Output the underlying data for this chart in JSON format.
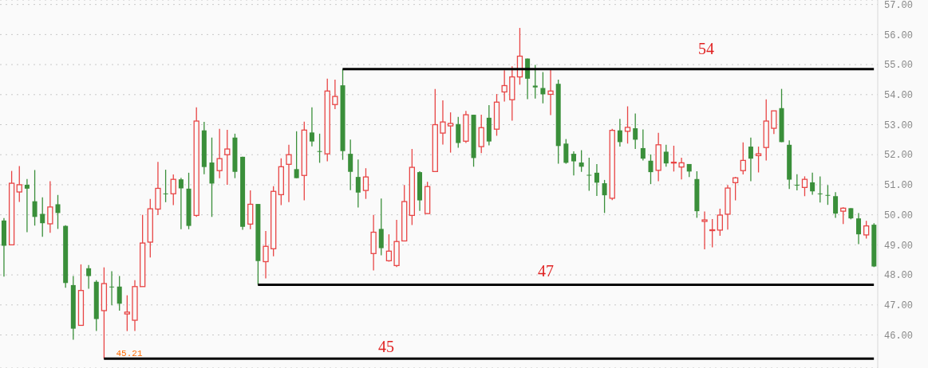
{
  "chart_data": {
    "type": "candlestick",
    "categories": [
      null,
      null,
      null,
      null,
      null,
      null,
      null,
      null,
      null,
      null,
      null,
      null,
      null,
      null,
      null,
      null,
      null,
      null,
      null,
      null,
      null,
      null,
      null,
      null,
      null,
      null,
      null,
      null,
      null,
      null,
      null,
      null,
      null,
      null,
      null,
      null,
      null,
      null,
      null,
      null,
      null,
      null,
      null,
      null,
      null,
      null,
      null,
      null,
      null,
      null,
      null,
      null,
      null,
      null,
      null,
      null,
      null,
      null,
      null,
      null,
      null,
      null,
      null,
      null,
      null,
      null,
      null,
      null,
      null,
      null,
      null,
      null,
      null,
      null,
      null,
      null,
      null,
      null,
      null,
      null,
      null,
      null,
      null,
      null,
      null,
      null,
      null,
      null,
      null,
      null,
      null,
      null,
      null,
      null,
      null,
      null,
      null,
      null,
      null,
      null,
      null,
      null,
      null,
      null,
      null,
      null,
      null,
      null,
      null,
      null,
      null,
      null,
      null,
      null
    ],
    "ohlc": [
      [
        49.81,
        49.89,
        47.94,
        48.97
      ],
      [
        49.0,
        51.46,
        49.0,
        51.05
      ],
      [
        50.76,
        51.62,
        50.43,
        51.0
      ],
      [
        51.0,
        51.19,
        49.42,
        50.87
      ],
      [
        50.45,
        51.49,
        49.64,
        49.93
      ],
      [
        50.03,
        50.58,
        49.27,
        49.72
      ],
      [
        49.7,
        51.12,
        49.4,
        50.26
      ],
      [
        50.35,
        50.66,
        49.53,
        50.06
      ],
      [
        49.63,
        49.65,
        47.57,
        47.73
      ],
      [
        47.66,
        47.96,
        45.84,
        46.21
      ],
      [
        46.32,
        48.35,
        46.32,
        47.48
      ],
      [
        48.22,
        48.33,
        47.54,
        47.96
      ],
      [
        47.77,
        47.82,
        46.13,
        46.53
      ],
      [
        46.81,
        48.25,
        45.21,
        47.71
      ],
      [
        47.61,
        48.12,
        46.99,
        47.59
      ],
      [
        47.61,
        47.96,
        46.81,
        47.04
      ],
      [
        46.7,
        47.32,
        46.13,
        46.76
      ],
      [
        46.49,
        47.82,
        46.13,
        47.61
      ],
      [
        47.61,
        50.0,
        47.61,
        49.06
      ],
      [
        49.09,
        50.53,
        48.58,
        50.2
      ],
      [
        50.19,
        51.76,
        49.99,
        50.88
      ],
      [
        50.71,
        51.5,
        50.42,
        50.7
      ],
      [
        50.7,
        51.34,
        50.32,
        51.18
      ],
      [
        51.18,
        51.23,
        49.52,
        50.88
      ],
      [
        50.87,
        51.4,
        49.52,
        49.63
      ],
      [
        49.98,
        53.58,
        49.93,
        53.12
      ],
      [
        52.81,
        53.09,
        51.35,
        51.59
      ],
      [
        51.74,
        52.57,
        49.93,
        51.04
      ],
      [
        51.47,
        52.86,
        51.22,
        51.87
      ],
      [
        52.0,
        52.83,
        51.0,
        52.19
      ],
      [
        52.57,
        52.7,
        51.22,
        51.43
      ],
      [
        51.93,
        51.93,
        49.5,
        49.6
      ],
      [
        49.69,
        50.81,
        49.52,
        50.35
      ],
      [
        50.36,
        50.36,
        47.67,
        48.46
      ],
      [
        48.44,
        49.46,
        47.88,
        48.95
      ],
      [
        48.87,
        50.95,
        48.62,
        50.78
      ],
      [
        50.67,
        51.88,
        50.32,
        51.6
      ],
      [
        51.68,
        52.33,
        50.42,
        52.0
      ],
      [
        51.52,
        52.78,
        51.22,
        51.22
      ],
      [
        51.31,
        53.1,
        50.48,
        52.82
      ],
      [
        52.74,
        53.58,
        52.28,
        52.44
      ],
      [
        52.12,
        52.7,
        51.73,
        52.1
      ],
      [
        52.03,
        54.53,
        51.78,
        54.12
      ],
      [
        53.67,
        54.5,
        53.52,
        53.94
      ],
      [
        54.31,
        54.85,
        51.83,
        52.12
      ],
      [
        52.03,
        52.5,
        50.82,
        51.43
      ],
      [
        51.26,
        51.84,
        50.24,
        50.74
      ],
      [
        50.81,
        51.55,
        50.53,
        51.26
      ],
      [
        48.71,
        50.0,
        48.15,
        49.42
      ],
      [
        49.53,
        50.54,
        48.65,
        48.89
      ],
      [
        48.47,
        49.35,
        48.44,
        48.79
      ],
      [
        48.31,
        49.83,
        48.26,
        49.11
      ],
      [
        49.13,
        50.99,
        49.13,
        50.44
      ],
      [
        49.98,
        52.19,
        49.66,
        51.58
      ],
      [
        51.42,
        51.45,
        50.13,
        50.48
      ],
      [
        50.04,
        51.1,
        50.04,
        50.94
      ],
      [
        51.44,
        54.19,
        51.44,
        53.0
      ],
      [
        52.72,
        53.81,
        52.34,
        53.09
      ],
      [
        52.96,
        53.41,
        52.07,
        53.04
      ],
      [
        53.02,
        53.26,
        52.23,
        52.39
      ],
      [
        52.45,
        53.46,
        52.39,
        53.33
      ],
      [
        53.33,
        53.33,
        51.6,
        51.89
      ],
      [
        52.27,
        53.33,
        52.05,
        52.9
      ],
      [
        53.23,
        53.65,
        52.31,
        52.44
      ],
      [
        52.85,
        54.02,
        52.63,
        53.75
      ],
      [
        54.09,
        54.81,
        53.77,
        54.3
      ],
      [
        53.83,
        54.94,
        53.13,
        54.59
      ],
      [
        54.59,
        56.22,
        54.33,
        55.28
      ],
      [
        55.2,
        55.2,
        53.85,
        54.53
      ],
      [
        54.3,
        54.99,
        53.87,
        54.24
      ],
      [
        54.22,
        54.75,
        53.71,
        54.01
      ],
      [
        54.01,
        54.86,
        53.32,
        54.12
      ],
      [
        54.36,
        54.5,
        51.7,
        52.29
      ],
      [
        52.37,
        52.52,
        51.7,
        51.73
      ],
      [
        52.03,
        52.11,
        51.31,
        51.78
      ],
      [
        51.74,
        52.15,
        51.43,
        51.6
      ],
      [
        51.33,
        51.9,
        50.8,
        51.31
      ],
      [
        51.4,
        51.69,
        50.63,
        51.07
      ],
      [
        51.05,
        51.16,
        50.06,
        50.65
      ],
      [
        50.55,
        52.86,
        50.49,
        52.81
      ],
      [
        52.81,
        53.19,
        52.27,
        52.42
      ],
      [
        52.78,
        53.61,
        52.37,
        52.91
      ],
      [
        52.88,
        53.37,
        52.19,
        52.5
      ],
      [
        52.22,
        52.84,
        51.81,
        51.87
      ],
      [
        51.8,
        52.01,
        51.02,
        51.42
      ],
      [
        51.48,
        52.73,
        51.12,
        52.33
      ],
      [
        52.1,
        52.33,
        51.6,
        51.71
      ],
      [
        51.73,
        52.3,
        51.44,
        51.75
      ],
      [
        51.59,
        51.9,
        51.18,
        51.73
      ],
      [
        51.69,
        51.69,
        51.26,
        51.44
      ],
      [
        51.19,
        51.45,
        49.9,
        50.12
      ],
      [
        49.78,
        50.11,
        48.85,
        49.83
      ],
      [
        49.48,
        49.86,
        48.92,
        49.5
      ],
      [
        49.49,
        50.2,
        49.3,
        49.99
      ],
      [
        50.02,
        50.99,
        49.51,
        50.89
      ],
      [
        51.07,
        51.26,
        50.48,
        51.23
      ],
      [
        51.47,
        52.41,
        51.34,
        51.81
      ],
      [
        52.27,
        52.57,
        51.12,
        51.87
      ],
      [
        51.97,
        52.27,
        51.41,
        52.03
      ],
      [
        52.24,
        53.84,
        51.81,
        53.12
      ],
      [
        52.88,
        53.46,
        52.69,
        53.46
      ],
      [
        53.55,
        54.19,
        52.42,
        52.42
      ],
      [
        52.33,
        52.48,
        50.86,
        51.17
      ],
      [
        51.0,
        51.35,
        50.81,
        50.98
      ],
      [
        50.91,
        51.28,
        50.62,
        51.18
      ],
      [
        51.08,
        51.4,
        50.67,
        50.78
      ],
      [
        50.71,
        51.28,
        50.41,
        50.69
      ],
      [
        50.66,
        50.99,
        50.33,
        50.64
      ],
      [
        50.62,
        50.75,
        49.9,
        50.04
      ],
      [
        50.12,
        50.25,
        49.69,
        50.22
      ],
      [
        50.22,
        50.22,
        49.85,
        49.88
      ],
      [
        49.88,
        50.06,
        49.02,
        49.35
      ],
      [
        49.33,
        49.8,
        49.21,
        49.63
      ],
      [
        49.67,
        49.72,
        48.26,
        48.28
      ]
    ],
    "colors": [
      "#3a8f3a",
      "#e84545",
      "#e84545",
      "#3a8f3a",
      "#3a8f3a",
      "#3a8f3a",
      "#e84545",
      "#3a8f3a",
      "#3a8f3a",
      "#3a8f3a",
      "#e84545",
      "#3a8f3a",
      "#3a8f3a",
      "#e84545",
      "#3a8f3a",
      "#3a8f3a",
      "#e84545",
      "#e84545",
      "#e84545",
      "#e84545",
      "#e84545",
      "#3a8f3a",
      "#e84545",
      "#3a8f3a",
      "#3a8f3a",
      "#e84545",
      "#3a8f3a",
      "#3a8f3a",
      "#e84545",
      "#e84545",
      "#3a8f3a",
      "#3a8f3a",
      "#e84545",
      "#3a8f3a",
      "#e84545",
      "#e84545",
      "#e84545",
      "#e84545",
      "#3a8f3a",
      "#e84545",
      "#3a8f3a",
      "#3a8f3a",
      "#e84545",
      "#e84545",
      "#3a8f3a",
      "#3a8f3a",
      "#3a8f3a",
      "#e84545",
      "#e84545",
      "#3a8f3a",
      "#e84545",
      "#e84545",
      "#e84545",
      "#e84545",
      "#3a8f3a",
      "#e84545",
      "#e84545",
      "#e84545",
      "#e84545",
      "#3a8f3a",
      "#e84545",
      "#3a8f3a",
      "#e84545",
      "#3a8f3a",
      "#e84545",
      "#e84545",
      "#e84545",
      "#e84545",
      "#3a8f3a",
      "#3a8f3a",
      "#3a8f3a",
      "#e84545",
      "#3a8f3a",
      "#3a8f3a",
      "#3a8f3a",
      "#3a8f3a",
      "#3a8f3a",
      "#3a8f3a",
      "#3a8f3a",
      "#e84545",
      "#3a8f3a",
      "#e84545",
      "#3a8f3a",
      "#3a8f3a",
      "#3a8f3a",
      "#e84545",
      "#3a8f3a",
      "#e84545",
      "#e84545",
      "#3a8f3a",
      "#3a8f3a",
      "#e84545",
      "#e84545",
      "#e84545",
      "#e84545",
      "#e84545",
      "#e84545",
      "#3a8f3a",
      "#e84545",
      "#e84545",
      "#e84545",
      "#3a8f3a",
      "#3a8f3a",
      "#3a8f3a",
      "#e84545",
      "#3a8f3a",
      "#3a8f3a",
      "#3a8f3a",
      "#3a8f3a",
      "#e84545",
      "#3a8f3a",
      "#3a8f3a",
      "#e84545",
      "#3a8f3a"
    ],
    "series": [
      {
        "type": "line",
        "color": "#000000",
        "values": [
          null,
          null,
          null,
          null,
          null,
          null,
          null,
          null,
          null,
          null,
          null,
          null,
          null,
          null,
          null,
          null,
          null,
          null,
          null,
          null,
          null,
          null,
          null,
          null,
          null,
          null,
          null,
          null,
          null,
          null,
          null,
          null,
          null,
          null,
          null,
          null,
          null,
          null,
          null,
          null,
          null,
          null,
          null,
          null,
          54.85,
          null,
          null,
          null,
          null,
          null,
          null,
          null,
          null,
          null,
          null,
          null,
          null,
          null,
          null,
          null,
          null,
          null,
          null,
          null,
          null,
          null,
          null,
          null,
          null,
          null,
          null,
          null,
          null,
          null,
          null,
          null,
          null,
          null,
          null,
          null,
          null,
          null,
          null,
          null,
          null,
          null,
          null,
          null,
          null,
          null,
          null,
          null,
          null,
          null,
          null,
          null,
          null,
          null,
          null,
          null,
          null,
          null,
          null,
          null,
          null,
          null,
          null,
          null,
          null,
          null,
          null,
          null,
          null,
          54.85
        ]
      },
      {
        "type": "line",
        "color": "#000000",
        "values": [
          null,
          null,
          null,
          null,
          null,
          null,
          null,
          null,
          null,
          null,
          null,
          null,
          null,
          null,
          null,
          null,
          null,
          null,
          null,
          null,
          null,
          null,
          null,
          null,
          null,
          null,
          null,
          null,
          null,
          null,
          null,
          null,
          null,
          47.67,
          null,
          null,
          null,
          null,
          null,
          null,
          null,
          null,
          null,
          null,
          null,
          null,
          null,
          null,
          null,
          null,
          null,
          null,
          null,
          null,
          null,
          null,
          null,
          null,
          null,
          null,
          null,
          null,
          null,
          null,
          null,
          null,
          null,
          null,
          null,
          null,
          null,
          null,
          null,
          null,
          null,
          null,
          null,
          null,
          null,
          null,
          null,
          null,
          null,
          null,
          null,
          null,
          null,
          null,
          null,
          null,
          null,
          null,
          null,
          null,
          null,
          null,
          null,
          null,
          null,
          null,
          null,
          null,
          null,
          null,
          null,
          null,
          null,
          null,
          null,
          null,
          null,
          null,
          null,
          47.67
        ]
      },
      {
        "type": "line",
        "color": "#000000",
        "values": [
          null,
          null,
          null,
          null,
          null,
          null,
          null,
          null,
          null,
          null,
          null,
          null,
          null,
          45.21,
          null,
          null,
          null,
          null,
          null,
          null,
          null,
          null,
          null,
          null,
          null,
          null,
          null,
          null,
          null,
          null,
          null,
          null,
          null,
          null,
          null,
          null,
          null,
          null,
          null,
          null,
          null,
          null,
          null,
          null,
          null,
          null,
          null,
          null,
          null,
          null,
          null,
          null,
          null,
          null,
          null,
          null,
          null,
          null,
          null,
          null,
          null,
          null,
          null,
          null,
          null,
          null,
          null,
          null,
          null,
          null,
          null,
          null,
          null,
          null,
          null,
          null,
          null,
          null,
          null,
          null,
          null,
          null,
          null,
          null,
          null,
          null,
          null,
          null,
          null,
          null,
          null,
          null,
          null,
          null,
          null,
          null,
          null,
          null,
          null,
          null,
          null,
          null,
          null,
          null,
          null,
          null,
          null,
          null,
          null,
          null,
          null,
          null,
          null,
          45.21
        ]
      }
    ],
    "ylim": [
      44.9,
      57.15
    ],
    "yticks": [
      {
        "value": 46,
        "label": "46.00"
      },
      {
        "value": 47,
        "label": "47.00"
      },
      {
        "value": 48,
        "label": "48.00"
      },
      {
        "value": 49,
        "label": "49.00"
      },
      {
        "value": 50,
        "label": "50.00"
      },
      {
        "value": 51,
        "label": "51.00"
      },
      {
        "value": 52,
        "label": "52.00"
      },
      {
        "value": 53,
        "label": "53.00"
      },
      {
        "value": 54,
        "label": "54.00"
      },
      {
        "value": 55,
        "label": "55.00"
      },
      {
        "value": 56,
        "label": "56.00"
      },
      {
        "value": 57,
        "label": "57.00"
      }
    ],
    "grid": "y",
    "annotations": [
      {
        "text": "54",
        "y": 54.85
      },
      {
        "text": "47",
        "y": 47.67
      },
      {
        "text": "45",
        "y": 45.21
      },
      {
        "text": "45.21",
        "y": 45.21
      }
    ]
  }
}
